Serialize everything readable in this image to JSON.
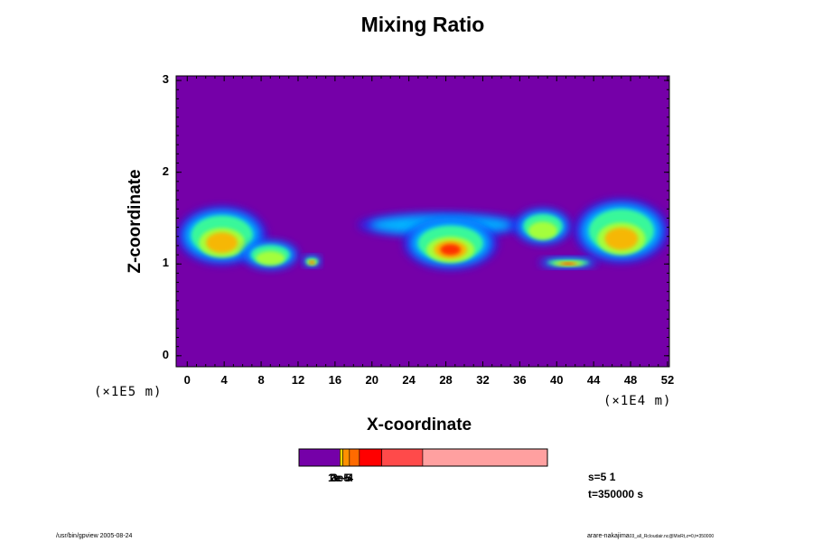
{
  "chart_data": {
    "type": "heatmap",
    "title": "Mixing Ratio",
    "xlabel": "X-coordinate",
    "ylabel": "Z-coordinate",
    "x_unit": "(×1E4 m)",
    "y_unit": "(×1E5 m)",
    "xlim": [
      -1.2,
      52.2
    ],
    "ylim": [
      -0.12,
      3.05
    ],
    "x_ticks": [
      "0",
      "4",
      "8",
      "12",
      "16",
      "20",
      "24",
      "28",
      "32",
      "36",
      "40",
      "44",
      "48",
      "52"
    ],
    "y_ticks": [
      "0",
      "1",
      "2",
      "3"
    ],
    "background_color": "#7500a8",
    "colorbar": {
      "colors": [
        "#7500a8",
        "#ffd400",
        "#ff9000",
        "#ff6a00",
        "#ff0000",
        "#ff4a4a",
        "#ffa0a0"
      ],
      "fractions": [
        0.165,
        0.012,
        0.026,
        0.04,
        0.09,
        0.165,
        0.502
      ],
      "labels_overprinted": [
        "1e-5",
        "2e-5",
        "3e-4"
      ]
    },
    "regions": [
      {
        "x": [
          -1.0,
          8.5
        ],
        "z": [
          1.0,
          1.62
        ],
        "intensity": 0.45
      },
      {
        "x": [
          6.0,
          12.0
        ],
        "z": [
          0.95,
          1.25
        ],
        "intensity": 0.35
      },
      {
        "x": [
          12.5,
          14.5
        ],
        "z": [
          0.98,
          1.08
        ],
        "intensity": 0.6
      },
      {
        "x": [
          18.5,
          36.5
        ],
        "z": [
          1.3,
          1.55
        ],
        "intensity": 0.15
      },
      {
        "x": [
          23.5,
          33.5
        ],
        "z": [
          0.95,
          1.5
        ],
        "intensity": 0.7
      },
      {
        "x": [
          35.5,
          41.5
        ],
        "z": [
          1.22,
          1.6
        ],
        "intensity": 0.3
      },
      {
        "x": [
          38.0,
          44.5
        ],
        "z": [
          0.97,
          1.06
        ],
        "intensity": 0.75
      },
      {
        "x": [
          42.0,
          52.0
        ],
        "z": [
          1.02,
          1.7
        ],
        "intensity": 0.55
      }
    ]
  },
  "info": {
    "s_value": "s=5 1",
    "t_value": "t=350000 s"
  },
  "footer": {
    "left": "/usr/bin/gpview 2005-08-24",
    "right": "arare-nakajima",
    "right_small": "03_all_Rcloudair.nc@MixRt,z=0,t=350000"
  }
}
